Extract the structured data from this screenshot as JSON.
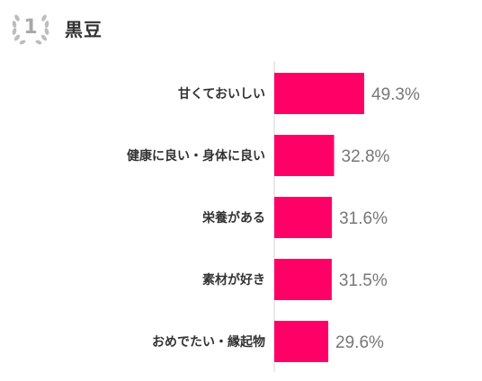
{
  "header": {
    "rank": "1",
    "title": "黒豆",
    "badge_color": "#bdbdbd"
  },
  "chart_data": {
    "type": "bar",
    "orientation": "horizontal",
    "categories": [
      "甘くておいしい",
      "健康に良い・身体に良い",
      "栄養がある",
      "素材が好き",
      "おめでたい・縁起物"
    ],
    "values": [
      49.3,
      32.8,
      31.6,
      31.5,
      29.6
    ],
    "value_labels": [
      "49.3%",
      "32.8%",
      "31.6%",
      "31.5%",
      "29.6%"
    ],
    "unit": "%",
    "bar_color": "#ff0066",
    "xlim": [
      0,
      100
    ],
    "grid": false
  }
}
